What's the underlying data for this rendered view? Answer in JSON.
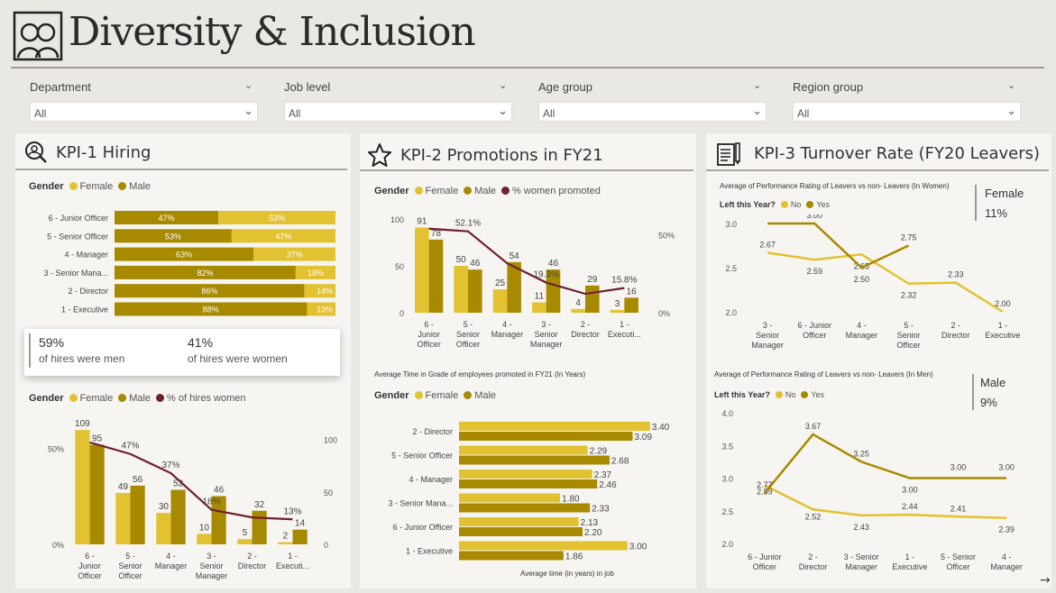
{
  "colors": {
    "female": "#e3c231",
    "male": "#a88a00",
    "line": "#6e2030",
    "bg": "#eae8e2",
    "panel": "#f6f5f1"
  },
  "header": {
    "title": "Diversity & Inclusion",
    "icon": "people-icon"
  },
  "filters": [
    {
      "label": "Department",
      "value": "All"
    },
    {
      "label": "Job level",
      "value": "All"
    },
    {
      "label": "Age group",
      "value": "All"
    },
    {
      "label": "Region group",
      "value": "All"
    }
  ],
  "kpi1": {
    "title": "KPI-1 Hiring",
    "icon": "search-person-icon",
    "legend_top": {
      "title": "Gender",
      "female": "Female",
      "male": "Male"
    },
    "card": {
      "men_val": "59%",
      "men_label": "of hires were men",
      "women_val": "41%",
      "women_label": "of hires were women"
    },
    "legend_bottom": {
      "title": "Gender",
      "female": "Female",
      "male": "Male",
      "line": "% of hires women"
    }
  },
  "kpi2": {
    "title": "KPI-2 Promotions in FY21",
    "icon": "star-icon",
    "legend_top": {
      "title": "Gender",
      "female": "Female",
      "male": "Male",
      "line": "% women promoted"
    },
    "subtitle2": "Average Time in Grade of employees promoted in FY21 (In Years)",
    "legend_bottom": {
      "title": "Gender",
      "female": "Female",
      "male": "Male"
    },
    "xlabel2": "Average time (in years) in job"
  },
  "kpi3": {
    "title": "KPI-3 Turnover Rate (FY20 Leavers)",
    "icon": "notepad-icon",
    "sub1": "Average of Performance Rating of Leavers vs non- Leavers (In Women)",
    "legend1": {
      "title": "Left this Year?",
      "no": "No",
      "yes": "Yes"
    },
    "female_label": "Female",
    "female_val": "11%",
    "sub2": "Average of Performance Rating of Leavers vs non- Leavers (In Men)",
    "legend2": {
      "title": "Left this Year?",
      "no": "No",
      "yes": "Yes"
    },
    "male_label": "Male",
    "male_val": "9%"
  },
  "chart_data": [
    {
      "id": "hiring-stacked",
      "type": "bar",
      "orientation": "horizontal-stacked-100",
      "categories": [
        "6 - Junior Officer",
        "5 - Senior Officer",
        "4 - Manager",
        "3 - Senior Mana...",
        "2 - Director",
        "1 - Executive"
      ],
      "series": [
        {
          "name": "Male",
          "values": [
            47,
            53,
            63,
            82,
            86,
            88
          ],
          "labels": [
            "47%",
            "53%",
            "63%",
            "82%",
            "86%",
            "88%"
          ]
        },
        {
          "name": "Female",
          "values": [
            53,
            47,
            37,
            18,
            14,
            13
          ],
          "labels": [
            "53%",
            "47%",
            "37%",
            "18%",
            "14%",
            "13%"
          ]
        }
      ]
    },
    {
      "id": "hiring-combo",
      "type": "bar",
      "categories": [
        [
          "6 -",
          "Junior",
          "Officer"
        ],
        [
          "5 -",
          "Senior",
          "Officer"
        ],
        [
          "4 -",
          "Manager"
        ],
        [
          "3 -",
          "Senior",
          "Manager"
        ],
        [
          "2 -",
          "Director"
        ],
        [
          "1 -",
          "Executi..."
        ]
      ],
      "series": [
        {
          "name": "Female",
          "values": [
            109,
            49,
            30,
            10,
            5,
            2
          ]
        },
        {
          "name": "Male",
          "values": [
            95,
            56,
            52,
            46,
            32,
            14
          ]
        },
        {
          "name": "% of hires women",
          "type": "line",
          "values": [
            53,
            47,
            37,
            18,
            14,
            13
          ],
          "labels": [
            "",
            "47%",
            "37%",
            "18%",
            "",
            "13%"
          ]
        }
      ],
      "left_ticks": [
        "50%",
        "0%"
      ],
      "right_ticks": [
        "100",
        "50",
        "0"
      ],
      "ylim": [
        0,
        110
      ],
      "y2lim": [
        0,
        60
      ]
    },
    {
      "id": "promotions-combo",
      "type": "bar",
      "categories": [
        [
          "6 -",
          "Junior",
          "Officer"
        ],
        [
          "5 -",
          "Senior",
          "Officer"
        ],
        [
          "4 -",
          "Manager"
        ],
        [
          "3 -",
          "Senior",
          "Manager"
        ],
        [
          "2 -",
          "Director"
        ],
        [
          "1 -",
          "Executi..."
        ]
      ],
      "series": [
        {
          "name": "Female",
          "values": [
            91,
            50,
            25,
            11,
            4,
            3
          ]
        },
        {
          "name": "Male",
          "values": [
            78,
            46,
            54,
            46,
            29,
            16
          ]
        },
        {
          "name": "% women promoted",
          "type": "line",
          "values": [
            53.8,
            52.1,
            31.7,
            19.3,
            12.1,
            15.8
          ],
          "labels": [
            "",
            "52.1%",
            "",
            "19.3%",
            "",
            "15.8%"
          ]
        }
      ],
      "left_ticks": [
        "100",
        "50",
        "0"
      ],
      "right_ticks": [
        "50%",
        "0%"
      ],
      "ylim": [
        0,
        100
      ],
      "y2lim": [
        0,
        60
      ]
    },
    {
      "id": "time-in-grade",
      "type": "bar",
      "orientation": "horizontal-grouped",
      "categories": [
        "2 - Director",
        "5 - Senior Officer",
        "4 - Manager",
        "3 - Senior Mana...",
        "6 - Junior Officer",
        "1 - Executive"
      ],
      "series": [
        {
          "name": "Female",
          "values": [
            3.4,
            2.29,
            2.37,
            1.8,
            2.13,
            3.0
          ]
        },
        {
          "name": "Male",
          "values": [
            3.09,
            2.68,
            2.46,
            2.33,
            2.2,
            1.86
          ]
        }
      ],
      "xlim": [
        0,
        3.5
      ]
    },
    {
      "id": "turnover-women",
      "type": "line",
      "categories": [
        [
          "3 -",
          "Senior",
          "Manager"
        ],
        [
          "6 - Junior",
          "Officer"
        ],
        [
          "4 -",
          "Manager"
        ],
        [
          "5 -",
          "Senior",
          "Officer"
        ],
        [
          "2 -",
          "Director"
        ],
        [
          "1 -",
          "Executive"
        ]
      ],
      "series": [
        {
          "name": "No",
          "values": [
            2.67,
            2.59,
            2.65,
            2.32,
            2.33,
            2.0
          ]
        },
        {
          "name": "Yes",
          "values": [
            3.0,
            3.0,
            2.5,
            2.75,
            null,
            null
          ]
        }
      ],
      "y_ticks": [
        "3.0",
        "2.5",
        "2.0"
      ],
      "ylim": [
        2.0,
        3.0
      ]
    },
    {
      "id": "turnover-men",
      "type": "line",
      "categories": [
        [
          "6 - Junior",
          "Officer"
        ],
        [
          "2 -",
          "Director"
        ],
        [
          "3 - Senior",
          "Manager"
        ],
        [
          "1 -",
          "Executive"
        ],
        [
          "5 - Senior",
          "Officer"
        ],
        [
          "4 -",
          "Manager"
        ]
      ],
      "series": [
        {
          "name": "No",
          "values": [
            2.89,
            2.52,
            2.43,
            2.44,
            2.41,
            2.39
          ]
        },
        {
          "name": "Yes",
          "values": [
            2.77,
            3.67,
            3.25,
            3.0,
            3.0,
            3.0
          ]
        }
      ],
      "y_ticks": [
        "4.0",
        "3.5",
        "3.0",
        "2.5",
        "2.0"
      ],
      "ylim": [
        2.0,
        4.0
      ]
    }
  ]
}
